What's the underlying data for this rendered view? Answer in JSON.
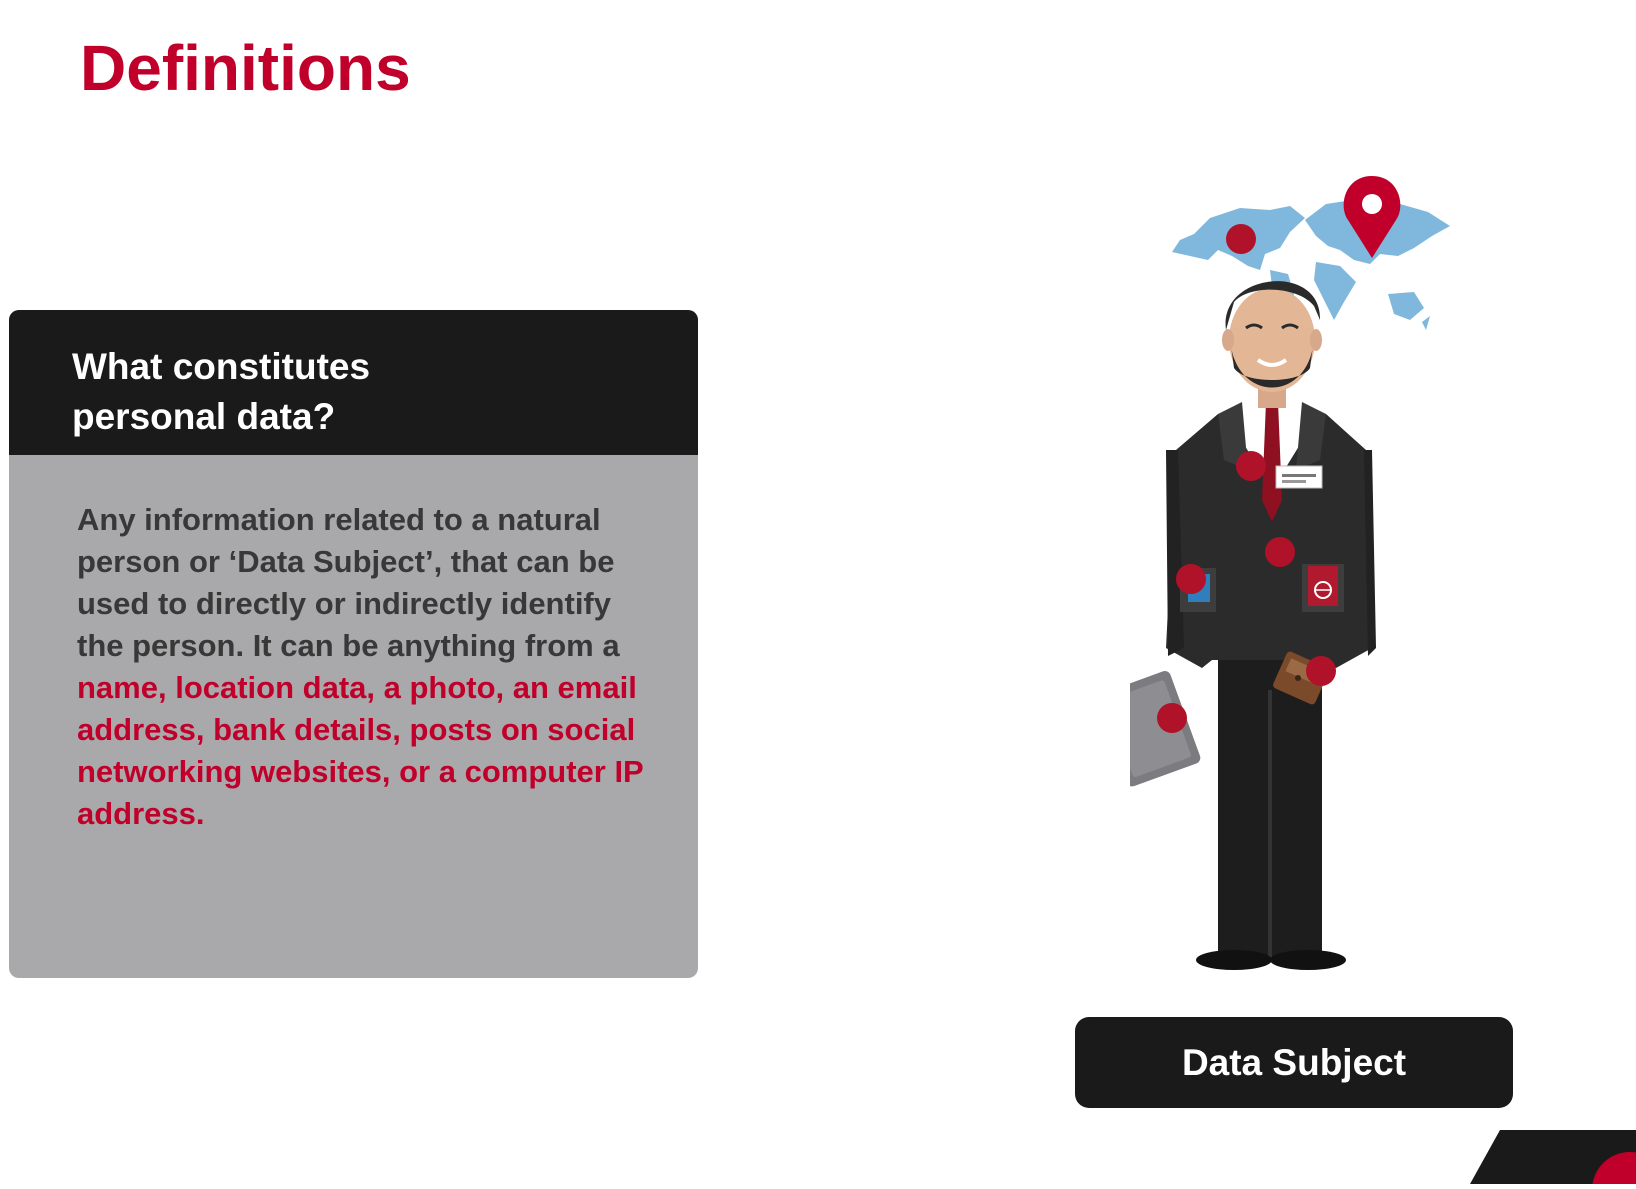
{
  "page": {
    "title": "Definitions"
  },
  "card": {
    "title": "What constitutes personal data?",
    "body_plain": "Any information related to a natural person or ‘Data Subject’, that can be used to directly or indirectly identify the person. It can be anything from a ",
    "body_highlight": "name, location data, a photo, an email address, bank details, posts on social networking websites, or a computer IP address."
  },
  "illustration": {
    "label": "Data Subject",
    "icons": [
      "world-map-icon",
      "location-pin-icon",
      "person-icon",
      "name-badge-icon",
      "phone-icon",
      "passport-icon",
      "tablet-icon",
      "wallet-icon"
    ]
  },
  "colors": {
    "accent": "#c0002a",
    "dark": "#1a1a1a",
    "card_body": "#a9a9ab",
    "body_text": "#383838",
    "map": "#7fb8dc"
  }
}
